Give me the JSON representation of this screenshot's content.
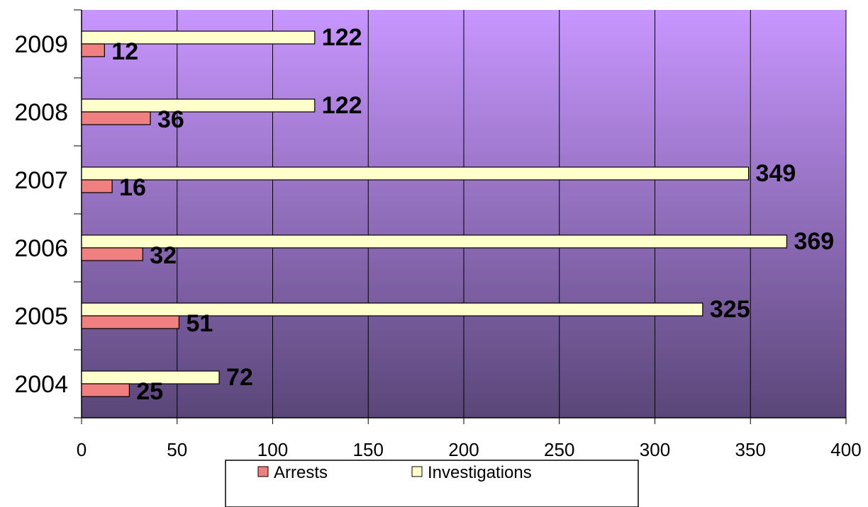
{
  "chart_data": {
    "type": "bar",
    "orientation": "horizontal",
    "categories": [
      "2004",
      "2005",
      "2006",
      "2007",
      "2008",
      "2009"
    ],
    "series": [
      {
        "name": "Arrests",
        "values": [
          25,
          51,
          32,
          16,
          36,
          12
        ],
        "color": "#f08080"
      },
      {
        "name": "Investigations",
        "values": [
          72,
          325,
          369,
          349,
          122,
          122
        ],
        "color": "#ffffcc"
      }
    ],
    "xlim": [
      0,
      400
    ],
    "x_ticks": [
      "0",
      "50",
      "100",
      "150",
      "200",
      "250",
      "300",
      "350",
      "400"
    ],
    "grid": true,
    "data_labels": true,
    "legend_position": "bottom",
    "plot_background": {
      "top": "#c896ff",
      "bottom": "#5a4678"
    },
    "title": "",
    "xlabel": "",
    "ylabel": ""
  }
}
